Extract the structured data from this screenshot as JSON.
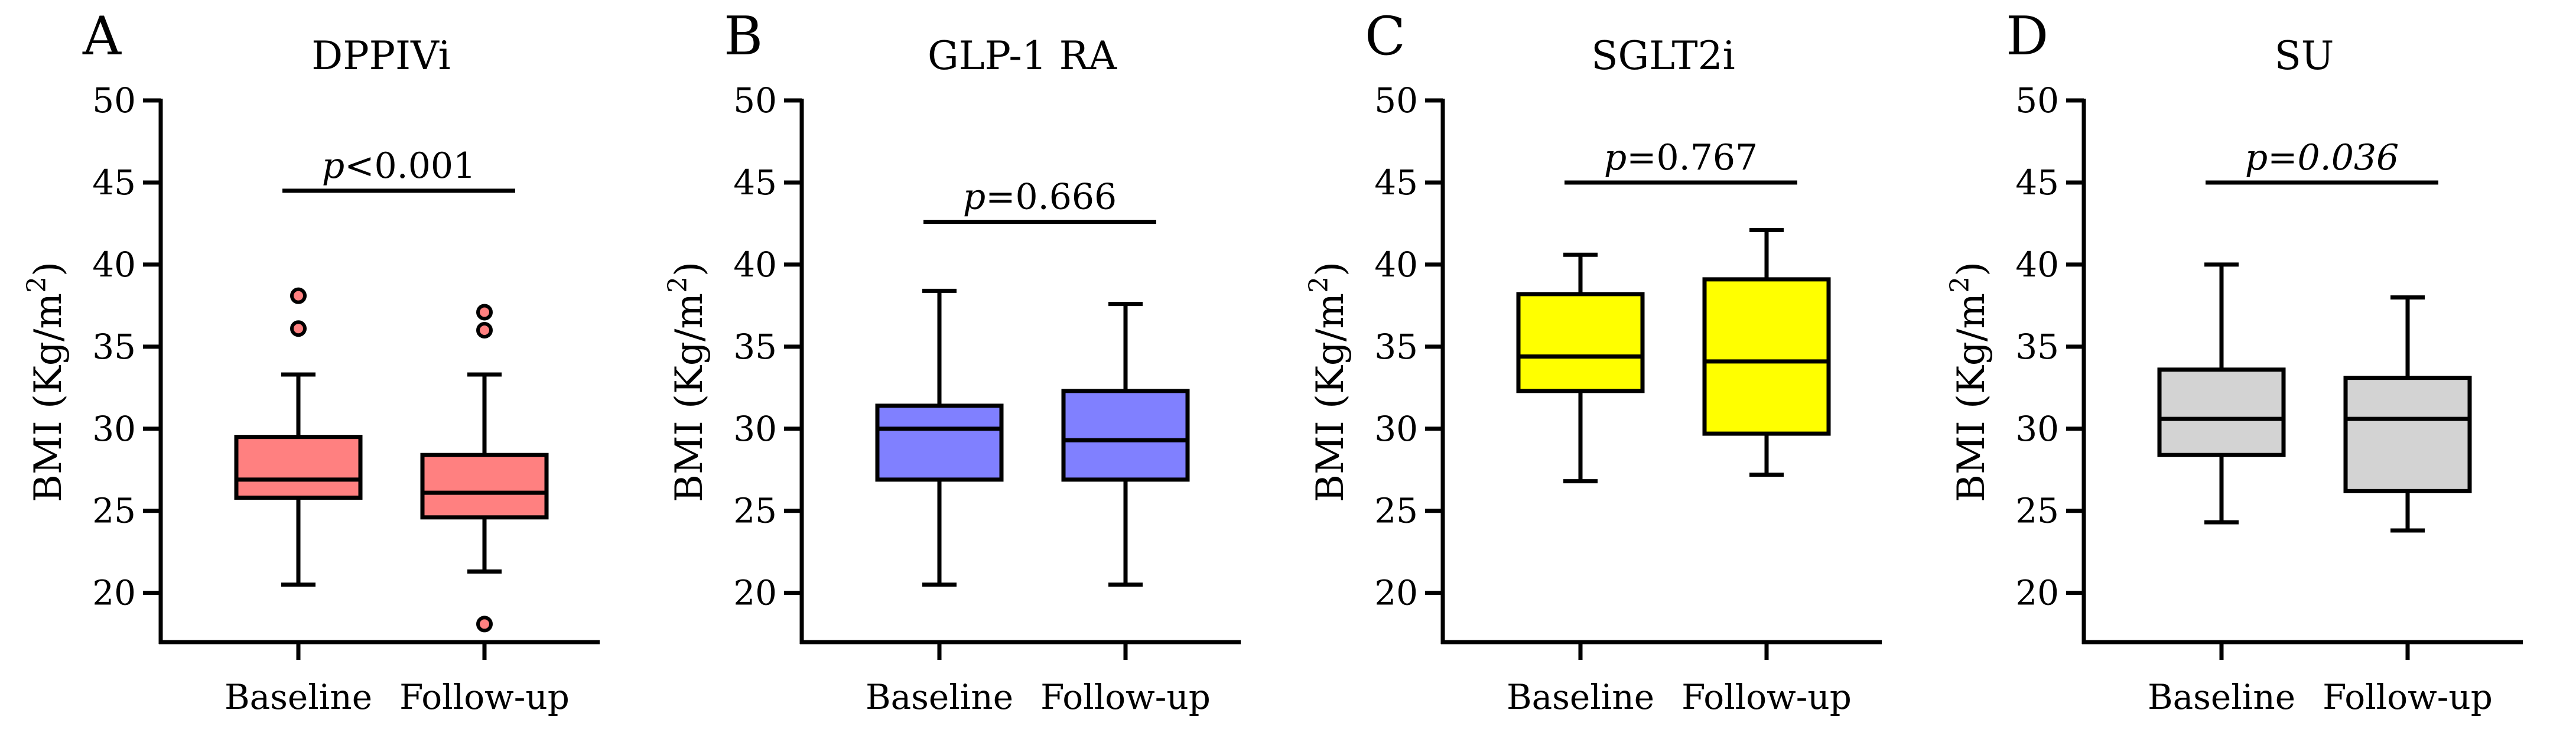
{
  "chart_data": [
    {
      "type": "box",
      "panel_label": "A",
      "title": "DPPIVi",
      "ylabel": "BMI (Kg/m",
      "ylabel_superscript": "2",
      "ylabel_close": ")",
      "ylim": [
        17,
        50
      ],
      "yticks": [
        "20",
        "25",
        "30",
        "35",
        "40",
        "45",
        "50"
      ],
      "categories": [
        "Baseline",
        "Follow-up"
      ],
      "fill": "#ff8080",
      "boxes": [
        {
          "whisker_low": 20.5,
          "q1": 25.8,
          "median": 26.9,
          "q3": 29.5,
          "whisker_high": 33.3,
          "outliers": [
            36.1,
            38.1
          ]
        },
        {
          "whisker_low": 21.3,
          "q1": 24.6,
          "median": 26.1,
          "q3": 28.4,
          "whisker_high": 33.3,
          "outliers": [
            18.1,
            36.0,
            37.1
          ]
        }
      ],
      "pvalue": {
        "prefix": "p",
        "text": "<0.001",
        "italic_value": false,
        "y": 44.5
      }
    },
    {
      "type": "box",
      "panel_label": "B",
      "title": "GLP-1 RA",
      "ylabel": "BMI (Kg/m",
      "ylabel_superscript": "2",
      "ylabel_close": ")",
      "ylim": [
        17,
        50
      ],
      "yticks": [
        "20",
        "25",
        "30",
        "35",
        "40",
        "45",
        "50"
      ],
      "categories": [
        "Baseline",
        "Follow-up"
      ],
      "fill": "#8080ff",
      "boxes": [
        {
          "whisker_low": 20.5,
          "q1": 26.9,
          "median": 30.0,
          "q3": 31.4,
          "whisker_high": 38.4,
          "outliers": []
        },
        {
          "whisker_low": 20.5,
          "q1": 26.9,
          "median": 29.3,
          "q3": 32.3,
          "whisker_high": 37.6,
          "outliers": []
        }
      ],
      "pvalue": {
        "prefix": "p",
        "text": "=0.666",
        "italic_value": false,
        "y": 42.6
      }
    },
    {
      "type": "box",
      "panel_label": "C",
      "title": "SGLT2i",
      "ylabel": "BMI (Kg/m",
      "ylabel_superscript": "2",
      "ylabel_close": ")",
      "ylim": [
        17,
        50
      ],
      "yticks": [
        "20",
        "25",
        "30",
        "35",
        "40",
        "45",
        "50"
      ],
      "categories": [
        "Baseline",
        "Follow-up"
      ],
      "fill": "#ffff00",
      "boxes": [
        {
          "whisker_low": 26.8,
          "q1": 32.3,
          "median": 34.4,
          "q3": 38.2,
          "whisker_high": 40.6,
          "outliers": []
        },
        {
          "whisker_low": 27.2,
          "q1": 29.7,
          "median": 34.1,
          "q3": 39.1,
          "whisker_high": 42.1,
          "outliers": []
        }
      ],
      "pvalue": {
        "prefix": "p",
        "text": "=0.767",
        "italic_value": false,
        "y": 45.0
      }
    },
    {
      "type": "box",
      "panel_label": "D",
      "title": "SU",
      "ylabel": "BMI (Kg/m",
      "ylabel_superscript": "2",
      "ylabel_close": ")",
      "ylim": [
        17,
        50
      ],
      "yticks": [
        "20",
        "25",
        "30",
        "35",
        "40",
        "45",
        "50"
      ],
      "categories": [
        "Baseline",
        "Follow-up"
      ],
      "fill": "#d3d3d3",
      "boxes": [
        {
          "whisker_low": 24.3,
          "q1": 28.4,
          "median": 30.6,
          "q3": 33.6,
          "whisker_high": 40.0,
          "outliers": []
        },
        {
          "whisker_low": 23.8,
          "q1": 26.2,
          "median": 30.6,
          "q3": 33.1,
          "whisker_high": 38.0,
          "outliers": []
        }
      ],
      "pvalue": {
        "prefix": "p",
        "text": "=0.036",
        "italic_value": true,
        "y": 45.0
      }
    }
  ]
}
